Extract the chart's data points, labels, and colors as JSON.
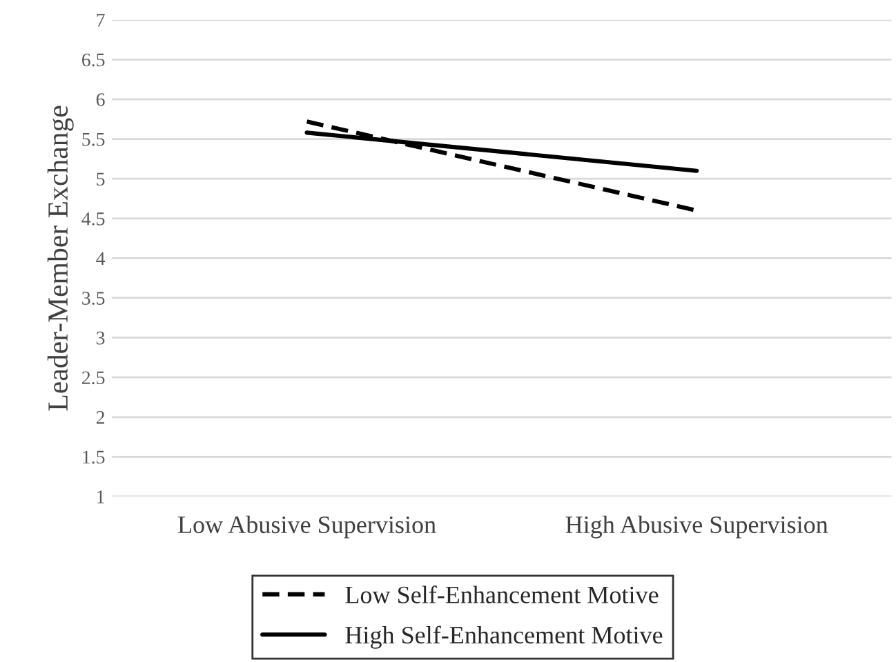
{
  "chart_data": {
    "type": "line",
    "ylabel": "Leader-Member Exchange",
    "categories": [
      "Low Abusive Supervision",
      "High Abusive Supervision"
    ],
    "series": [
      {
        "name": "Low Self-Enhancement Motive",
        "color": "#000000",
        "line_style": "dashed",
        "values": [
          5.72,
          4.6
        ]
      },
      {
        "name": "High Self-Enhancement Motive",
        "color": "#000000",
        "line_style": "solid",
        "values": [
          5.58,
          5.1
        ]
      }
    ],
    "ylim": [
      1,
      7
    ],
    "yticks": [
      1,
      1.5,
      2,
      2.5,
      3,
      3.5,
      4,
      4.5,
      5,
      5.5,
      6,
      6.5,
      7
    ],
    "grid": "y",
    "legend": "bottom",
    "marker": "none"
  }
}
